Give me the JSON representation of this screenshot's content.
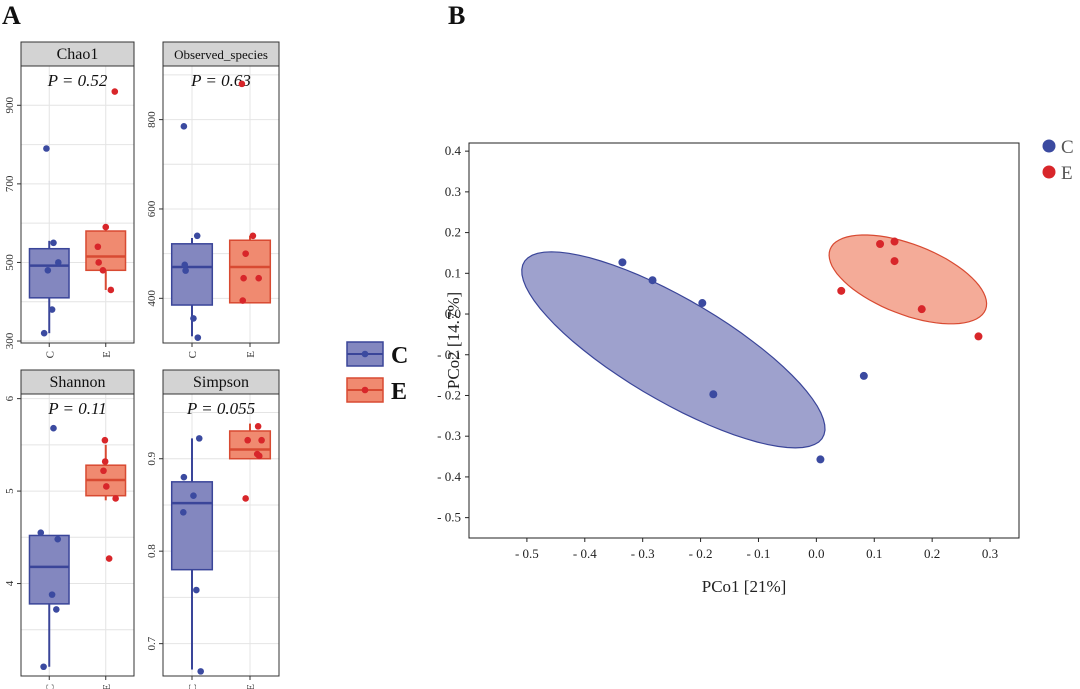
{
  "panel_labels": {
    "a": "A",
    "b": "B"
  },
  "colors": {
    "c_fill": "#8387BF",
    "c_stroke": "#3A4599",
    "c_point": "#3B4AA0",
    "e_fill": "#F08A70",
    "e_stroke": "#D84A32",
    "e_point": "#D8262A",
    "strip": "#D3D3D3",
    "grid": "#E4E4E4"
  },
  "legend": {
    "a_items": [
      {
        "label": "C",
        "group": "C"
      },
      {
        "label": "E",
        "group": "E"
      }
    ],
    "b_items": [
      {
        "label": "C",
        "group": "C"
      },
      {
        "label": "E",
        "group": "E"
      }
    ]
  },
  "chart_data": [
    {
      "type": "box",
      "title": "Chao1",
      "pvalue": "P = 0.52",
      "categories": [
        "C",
        "E"
      ],
      "ylim": [
        295,
        1000
      ],
      "yticks": [
        300,
        500,
        700,
        900
      ],
      "boxes": [
        {
          "group": "C",
          "q1": 410,
          "median": 492,
          "q3": 535,
          "whisker_low": 320,
          "whisker_high": 555
        },
        {
          "group": "E",
          "q1": 480,
          "median": 515,
          "q3": 580,
          "whisker_low": 430,
          "whisker_high": 590
        }
      ],
      "points": [
        {
          "group": "C",
          "jitter": -0.1,
          "value": 790
        },
        {
          "group": "C",
          "jitter": -0.18,
          "value": 320
        },
        {
          "group": "C",
          "jitter": 0.15,
          "value": 550
        },
        {
          "group": "C",
          "jitter": -0.05,
          "value": 480
        },
        {
          "group": "C",
          "jitter": 0.1,
          "value": 380
        },
        {
          "group": "C",
          "jitter": 0.32,
          "value": 500
        },
        {
          "group": "E",
          "jitter": -0.25,
          "value": 500
        },
        {
          "group": "E",
          "jitter": -0.28,
          "value": 540
        },
        {
          "group": "E",
          "jitter": -0.1,
          "value": 480
        },
        {
          "group": "E",
          "jitter": 0.0,
          "value": 590
        },
        {
          "group": "E",
          "jitter": 0.18,
          "value": 430
        },
        {
          "group": "E",
          "jitter": 0.32,
          "value": 935
        }
      ]
    },
    {
      "type": "box",
      "title": "Observed_species",
      "pvalue": "P = 0.63",
      "categories": [
        "C",
        "E"
      ],
      "ylim": [
        300,
        920
      ],
      "yticks": [
        400,
        600,
        800
      ],
      "boxes": [
        {
          "group": "C",
          "q1": 385,
          "median": 470,
          "q3": 522,
          "whisker_low": 315,
          "whisker_high": 535
        },
        {
          "group": "E",
          "q1": 390,
          "median": 470,
          "q3": 530,
          "whisker_low": 390,
          "whisker_high": 540
        }
      ],
      "points": [
        {
          "group": "C",
          "jitter": -0.28,
          "value": 785
        },
        {
          "group": "C",
          "jitter": 0.2,
          "value": 312
        },
        {
          "group": "C",
          "jitter": 0.05,
          "value": 355
        },
        {
          "group": "C",
          "jitter": -0.25,
          "value": 475
        },
        {
          "group": "C",
          "jitter": -0.22,
          "value": 462
        },
        {
          "group": "C",
          "jitter": 0.18,
          "value": 540
        },
        {
          "group": "E",
          "jitter": -0.28,
          "value": 880
        },
        {
          "group": "E",
          "jitter": -0.15,
          "value": 500
        },
        {
          "group": "E",
          "jitter": -0.22,
          "value": 445
        },
        {
          "group": "E",
          "jitter": -0.25,
          "value": 395
        },
        {
          "group": "E",
          "jitter": 0.1,
          "value": 540
        },
        {
          "group": "E",
          "jitter": 0.3,
          "value": 445
        }
      ]
    },
    {
      "type": "box",
      "title": "Shannon",
      "pvalue": "P = 0.11",
      "categories": [
        "C",
        "E"
      ],
      "ylim": [
        3.0,
        6.05
      ],
      "yticks": [
        4,
        5,
        6
      ],
      "boxes": [
        {
          "group": "C",
          "q1": 3.78,
          "median": 4.18,
          "q3": 4.52,
          "whisker_low": 3.1,
          "whisker_high": 4.52
        },
        {
          "group": "E",
          "q1": 4.95,
          "median": 5.12,
          "q3": 5.28,
          "whisker_low": 4.9,
          "whisker_high": 5.5
        }
      ],
      "points": [
        {
          "group": "C",
          "jitter": 0.15,
          "value": 5.68
        },
        {
          "group": "C",
          "jitter": -0.3,
          "value": 4.55
        },
        {
          "group": "C",
          "jitter": 0.3,
          "value": 4.48
        },
        {
          "group": "C",
          "jitter": 0.1,
          "value": 3.88
        },
        {
          "group": "C",
          "jitter": 0.25,
          "value": 3.72
        },
        {
          "group": "C",
          "jitter": -0.2,
          "value": 3.1
        },
        {
          "group": "E",
          "jitter": -0.03,
          "value": 5.55
        },
        {
          "group": "E",
          "jitter": -0.02,
          "value": 5.32
        },
        {
          "group": "E",
          "jitter": -0.08,
          "value": 5.22
        },
        {
          "group": "E",
          "jitter": 0.02,
          "value": 5.05
        },
        {
          "group": "E",
          "jitter": 0.35,
          "value": 4.92
        },
        {
          "group": "E",
          "jitter": 0.12,
          "value": 4.27
        }
      ]
    },
    {
      "type": "box",
      "title": "Simpson",
      "pvalue": "P = 0.055",
      "categories": [
        "C",
        "E"
      ],
      "ylim": [
        0.665,
        0.97
      ],
      "yticks": [
        0.7,
        0.8,
        0.9
      ],
      "boxes": [
        {
          "group": "C",
          "q1": 0.78,
          "median": 0.852,
          "q3": 0.875,
          "whisker_low": 0.672,
          "whisker_high": 0.922
        },
        {
          "group": "E",
          "q1": 0.9,
          "median": 0.91,
          "q3": 0.93,
          "whisker_low": 0.9,
          "whisker_high": 0.938
        }
      ],
      "points": [
        {
          "group": "C",
          "jitter": 0.25,
          "value": 0.922
        },
        {
          "group": "C",
          "jitter": -0.28,
          "value": 0.88
        },
        {
          "group": "C",
          "jitter": 0.05,
          "value": 0.86
        },
        {
          "group": "C",
          "jitter": -0.3,
          "value": 0.842
        },
        {
          "group": "C",
          "jitter": 0.15,
          "value": 0.758
        },
        {
          "group": "C",
          "jitter": 0.3,
          "value": 0.67
        },
        {
          "group": "E",
          "jitter": -0.08,
          "value": 0.92
        },
        {
          "group": "E",
          "jitter": 0.28,
          "value": 0.935
        },
        {
          "group": "E",
          "jitter": 0.25,
          "value": 0.905
        },
        {
          "group": "E",
          "jitter": 0.32,
          "value": 0.903
        },
        {
          "group": "E",
          "jitter": 0.4,
          "value": 0.92
        },
        {
          "group": "E",
          "jitter": -0.15,
          "value": 0.857
        }
      ]
    },
    {
      "type": "scatter",
      "xlabel": "PCo1 [21%]",
      "ylabel": "PCo2 [14.7%]",
      "xlim": [
        -0.6,
        0.35
      ],
      "ylim": [
        -0.55,
        0.42
      ],
      "xticks": [
        -0.5,
        -0.4,
        -0.3,
        -0.2,
        -0.1,
        0.0,
        0.1,
        0.2,
        0.3
      ],
      "xtick_labels": [
        "- 0.5",
        "- 0.4",
        "- 0.3",
        "- 0.2",
        "- 0.1",
        "0.0",
        "0.1",
        "0.2",
        "0.3"
      ],
      "yticks": [
        0.4,
        0.3,
        0.2,
        0.1,
        0.0,
        -0.1,
        -0.2,
        -0.3,
        -0.4,
        -0.5
      ],
      "ytick_labels": [
        "0.4",
        "0.3",
        "0.2",
        "0.1",
        "0.0",
        "- 0.1",
        "- 0.2",
        "- 0.3",
        "- 0.4",
        "- 0.5"
      ],
      "ellipses": [
        {
          "group": "C",
          "cx": -0.247,
          "cy": -0.088,
          "rx": 0.338,
          "ry": 0.111,
          "angle_deg": -42
        },
        {
          "group": "E",
          "cx": 0.158,
          "cy": 0.085,
          "rx": 0.155,
          "ry": 0.08,
          "angle_deg": -34
        }
      ],
      "points": [
        {
          "group": "C",
          "x": -0.335,
          "y": 0.127
        },
        {
          "group": "C",
          "x": -0.283,
          "y": 0.083
        },
        {
          "group": "C",
          "x": -0.197,
          "y": 0.027
        },
        {
          "group": "C",
          "x": -0.178,
          "y": -0.197
        },
        {
          "group": "C",
          "x": 0.007,
          "y": -0.357
        },
        {
          "group": "C",
          "x": 0.082,
          "y": -0.152
        },
        {
          "group": "E",
          "x": 0.043,
          "y": 0.057
        },
        {
          "group": "E",
          "x": 0.11,
          "y": 0.172
        },
        {
          "group": "E",
          "x": 0.135,
          "y": 0.178
        },
        {
          "group": "E",
          "x": 0.135,
          "y": 0.13
        },
        {
          "group": "E",
          "x": 0.182,
          "y": 0.012
        },
        {
          "group": "E",
          "x": 0.28,
          "y": -0.055
        }
      ]
    }
  ]
}
